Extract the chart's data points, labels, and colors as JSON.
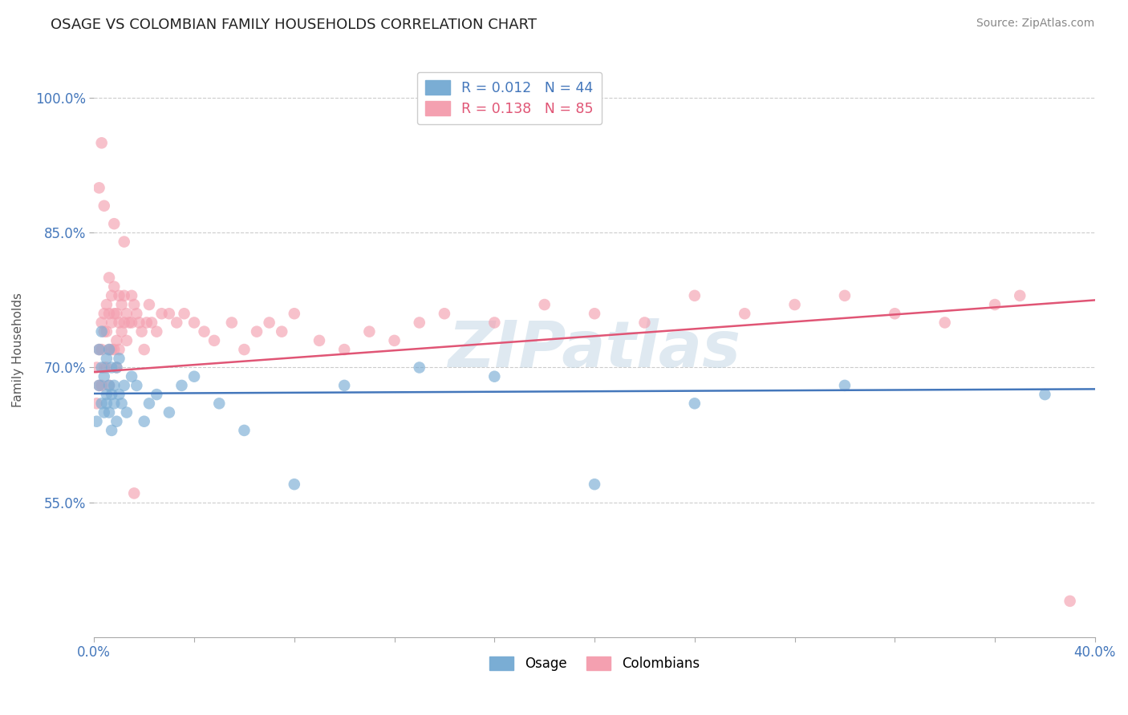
{
  "title": "OSAGE VS COLOMBIAN FAMILY HOUSEHOLDS CORRELATION CHART",
  "source": "Source: ZipAtlas.com",
  "xlabel": "",
  "ylabel": "Family Households",
  "xlim": [
    0.0,
    0.4
  ],
  "ylim": [
    0.4,
    1.04
  ],
  "yticks": [
    0.55,
    0.7,
    0.85,
    1.0
  ],
  "ytick_labels": [
    "55.0%",
    "70.0%",
    "85.0%",
    "100.0%"
  ],
  "xticks": [
    0.0,
    0.04,
    0.08,
    0.12,
    0.16,
    0.2,
    0.24,
    0.28,
    0.32,
    0.36,
    0.4
  ],
  "xtick_labels": [
    "0.0%",
    "",
    "",
    "",
    "",
    "",
    "",
    "",
    "",
    "",
    "40.0%"
  ],
  "blue_R": 0.012,
  "blue_N": 44,
  "pink_R": 0.138,
  "pink_N": 85,
  "blue_color": "#7aadd4",
  "pink_color": "#f4a0b0",
  "blue_line_color": "#4477bb",
  "pink_line_color": "#e05575",
  "background_color": "#ffffff",
  "grid_color": "#cccccc",
  "title_color": "#222222",
  "axis_label_color": "#4477bb",
  "watermark": "ZIPatlas",
  "osage_x": [
    0.001,
    0.002,
    0.002,
    0.003,
    0.003,
    0.003,
    0.004,
    0.004,
    0.005,
    0.005,
    0.005,
    0.006,
    0.006,
    0.006,
    0.007,
    0.007,
    0.007,
    0.008,
    0.008,
    0.009,
    0.009,
    0.01,
    0.01,
    0.011,
    0.012,
    0.013,
    0.015,
    0.017,
    0.02,
    0.022,
    0.025,
    0.03,
    0.035,
    0.04,
    0.05,
    0.06,
    0.08,
    0.1,
    0.13,
    0.16,
    0.2,
    0.24,
    0.3,
    0.38
  ],
  "osage_y": [
    0.64,
    0.68,
    0.72,
    0.66,
    0.7,
    0.74,
    0.65,
    0.69,
    0.67,
    0.71,
    0.66,
    0.68,
    0.72,
    0.65,
    0.7,
    0.67,
    0.63,
    0.68,
    0.66,
    0.64,
    0.7,
    0.67,
    0.71,
    0.66,
    0.68,
    0.65,
    0.69,
    0.68,
    0.64,
    0.66,
    0.67,
    0.65,
    0.68,
    0.69,
    0.66,
    0.63,
    0.57,
    0.68,
    0.7,
    0.69,
    0.57,
    0.66,
    0.68,
    0.67
  ],
  "colombian_x": [
    0.001,
    0.001,
    0.002,
    0.002,
    0.003,
    0.003,
    0.003,
    0.004,
    0.004,
    0.004,
    0.005,
    0.005,
    0.005,
    0.006,
    0.006,
    0.006,
    0.006,
    0.007,
    0.007,
    0.007,
    0.008,
    0.008,
    0.008,
    0.009,
    0.009,
    0.009,
    0.01,
    0.01,
    0.01,
    0.011,
    0.011,
    0.012,
    0.012,
    0.013,
    0.013,
    0.014,
    0.015,
    0.015,
    0.016,
    0.017,
    0.018,
    0.019,
    0.02,
    0.021,
    0.022,
    0.023,
    0.025,
    0.027,
    0.03,
    0.033,
    0.036,
    0.04,
    0.044,
    0.048,
    0.055,
    0.06,
    0.065,
    0.07,
    0.075,
    0.08,
    0.09,
    0.1,
    0.11,
    0.12,
    0.13,
    0.14,
    0.16,
    0.18,
    0.2,
    0.22,
    0.24,
    0.26,
    0.28,
    0.3,
    0.32,
    0.34,
    0.36,
    0.37,
    0.39,
    0.002,
    0.003,
    0.004,
    0.008,
    0.012,
    0.016
  ],
  "colombian_y": [
    0.66,
    0.7,
    0.72,
    0.68,
    0.75,
    0.72,
    0.68,
    0.76,
    0.74,
    0.7,
    0.77,
    0.74,
    0.7,
    0.8,
    0.76,
    0.72,
    0.68,
    0.78,
    0.75,
    0.72,
    0.79,
    0.76,
    0.72,
    0.76,
    0.73,
    0.7,
    0.78,
    0.75,
    0.72,
    0.77,
    0.74,
    0.78,
    0.75,
    0.76,
    0.73,
    0.75,
    0.78,
    0.75,
    0.77,
    0.76,
    0.75,
    0.74,
    0.72,
    0.75,
    0.77,
    0.75,
    0.74,
    0.76,
    0.76,
    0.75,
    0.76,
    0.75,
    0.74,
    0.73,
    0.75,
    0.72,
    0.74,
    0.75,
    0.74,
    0.76,
    0.73,
    0.72,
    0.74,
    0.73,
    0.75,
    0.76,
    0.75,
    0.77,
    0.76,
    0.75,
    0.78,
    0.76,
    0.77,
    0.78,
    0.76,
    0.75,
    0.77,
    0.78,
    0.44,
    0.9,
    0.95,
    0.88,
    0.86,
    0.84,
    0.56
  ]
}
